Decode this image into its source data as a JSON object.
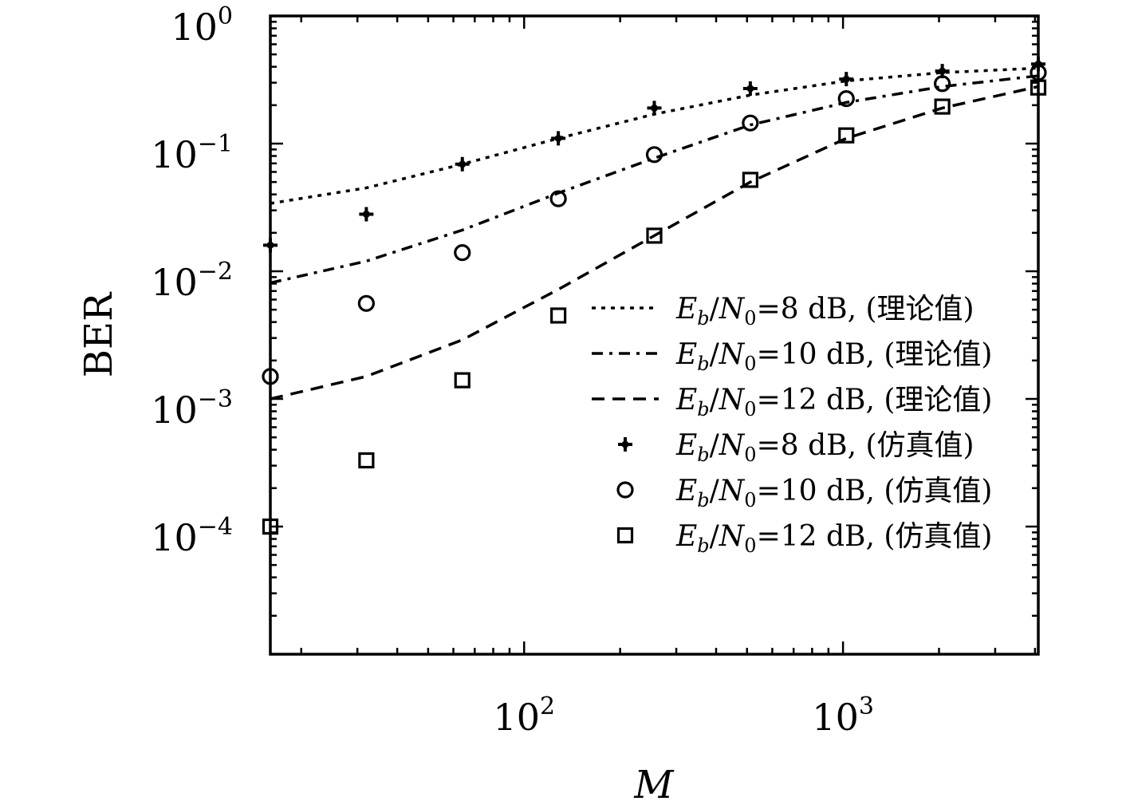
{
  "chart_data": {
    "type": "line",
    "xlabel": "M",
    "ylabel": "BER",
    "x_scale": "log",
    "y_scale": "log",
    "xlim": [
      16,
      4096
    ],
    "ylim": [
      1e-05,
      1
    ],
    "x_ticks": [
      {
        "value": 100,
        "base": "10",
        "exp": "2"
      },
      {
        "value": 1000,
        "base": "10",
        "exp": "3"
      }
    ],
    "y_ticks": [
      {
        "value": 1,
        "base": "10",
        "exp": "0"
      },
      {
        "value": 0.1,
        "base": "10",
        "exp": "−1"
      },
      {
        "value": 0.01,
        "base": "10",
        "exp": "−2"
      },
      {
        "value": 0.001,
        "base": "10",
        "exp": "−3"
      },
      {
        "value": 0.0001,
        "base": "10",
        "exp": "−4"
      }
    ],
    "grid": false,
    "legend_position": "right",
    "series": [
      {
        "name": "Eb/N0=8 dB, (理论值)",
        "kind": "theory",
        "style": "dotted",
        "color": "#000000",
        "x": [
          16,
          32,
          64,
          128,
          256,
          512,
          1024,
          2048,
          4096
        ],
        "y": [
          0.034,
          0.045,
          0.069,
          0.11,
          0.17,
          0.24,
          0.31,
          0.36,
          0.39
        ]
      },
      {
        "name": "Eb/N0=10 dB, (理论值)",
        "kind": "theory",
        "style": "dashdot",
        "color": "#000000",
        "x": [
          16,
          32,
          64,
          128,
          256,
          512,
          1024,
          2048,
          4096
        ],
        "y": [
          0.0081,
          0.012,
          0.021,
          0.041,
          0.077,
          0.14,
          0.21,
          0.28,
          0.34
        ]
      },
      {
        "name": "Eb/N0=12 dB, (理论值)",
        "kind": "theory",
        "style": "dashed",
        "color": "#000000",
        "x": [
          16,
          32,
          64,
          128,
          256,
          512,
          1024,
          2048,
          4096
        ],
        "y": [
          0.001,
          0.0015,
          0.0029,
          0.0072,
          0.019,
          0.05,
          0.11,
          0.19,
          0.28
        ]
      },
      {
        "name": "Eb/N0=8 dB, (仿真值)",
        "kind": "simulation",
        "marker": "plus",
        "color": "#000000",
        "x": [
          16,
          32,
          64,
          128,
          256,
          512,
          1024,
          2048,
          4096
        ],
        "y": [
          0.016,
          0.028,
          0.069,
          0.11,
          0.19,
          0.27,
          0.32,
          0.37,
          0.42
        ]
      },
      {
        "name": "Eb/N0=10 dB, (仿真值)",
        "kind": "simulation",
        "marker": "circle",
        "color": "#000000",
        "x": [
          16,
          32,
          64,
          128,
          256,
          512,
          1024,
          2048,
          4096
        ],
        "y": [
          0.0015,
          0.0056,
          0.014,
          0.037,
          0.082,
          0.145,
          0.225,
          0.295,
          0.36
        ]
      },
      {
        "name": "Eb/N0=12 dB, (仿真值)",
        "kind": "simulation",
        "marker": "square",
        "color": "#000000",
        "x": [
          16,
          32,
          64,
          128,
          256,
          512,
          1024,
          2048,
          4096
        ],
        "y": [
          0.0001,
          0.00033,
          0.0014,
          0.0045,
          0.019,
          0.052,
          0.116,
          0.195,
          0.275
        ]
      }
    ],
    "legend": [
      {
        "sub": "b",
        "sub2": "0",
        "rest": "=8 dB, (理论值)"
      },
      {
        "sub": "b",
        "sub2": "0",
        "rest": "=10 dB, (理论值)"
      },
      {
        "sub": "b",
        "sub2": "0",
        "rest": "=12 dB, (理论值)"
      },
      {
        "sub": "b",
        "sub2": "0",
        "rest": "=8 dB, (仿真值)"
      },
      {
        "sub": "b",
        "sub2": "0",
        "rest": "=10 dB, (仿真值)"
      },
      {
        "sub": "b",
        "sub2": "0",
        "rest": "=12 dB, (仿真值)"
      }
    ]
  }
}
